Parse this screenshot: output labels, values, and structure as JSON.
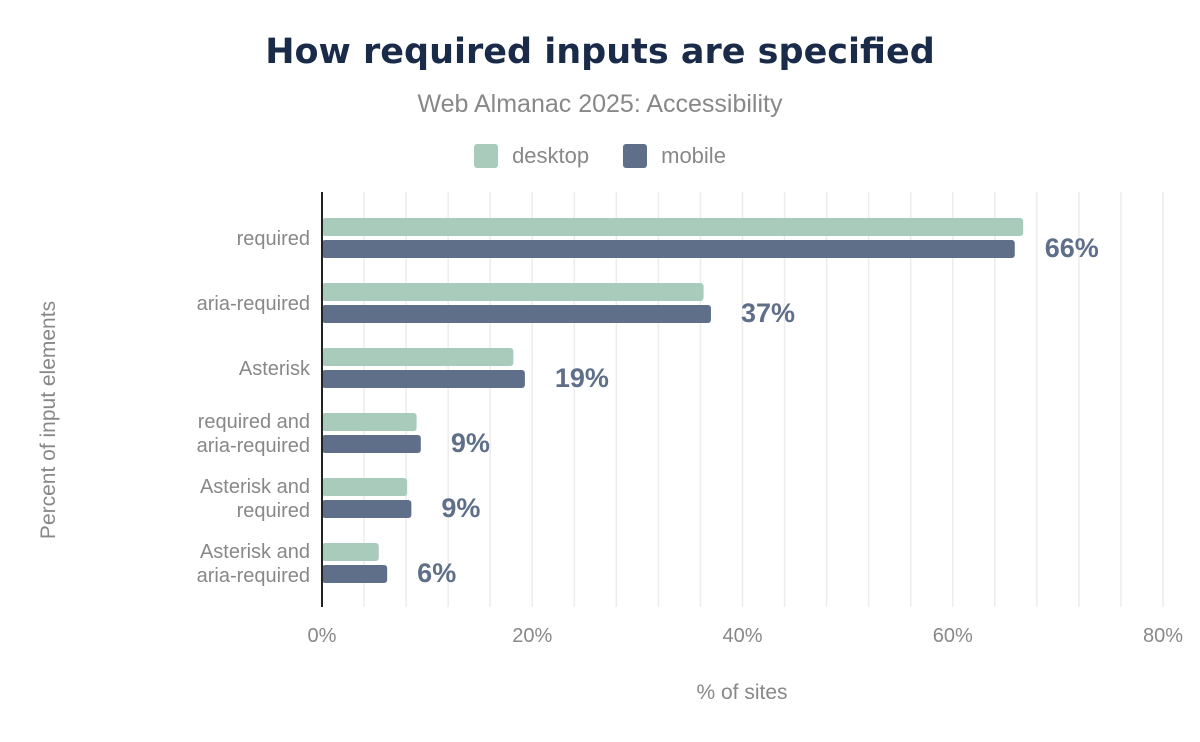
{
  "chart_data": {
    "type": "bar",
    "orientation": "horizontal",
    "title": "How required inputs are specified",
    "subtitle": "Web Almanac 2025: Accessibility",
    "xlabel": "% of sites",
    "ylabel": "Percent of input elements",
    "xlim": [
      0,
      80
    ],
    "xticks": [
      "0%",
      "20%",
      "40%",
      "60%",
      "80%"
    ],
    "xtick_values": [
      0,
      20,
      40,
      60,
      80
    ],
    "grid": true,
    "legend_placement": "top",
    "categories": [
      [
        "required"
      ],
      [
        "aria-required"
      ],
      [
        "Asterisk"
      ],
      [
        "required and",
        "aria-required"
      ],
      [
        "Asterisk and",
        "required"
      ],
      [
        "Asterisk and",
        "aria-required"
      ]
    ],
    "series": [
      {
        "name": "desktop",
        "color": "#a8cbbb",
        "values": [
          66.7,
          36.3,
          18.2,
          9.0,
          8.1,
          5.4
        ]
      },
      {
        "name": "mobile",
        "color": "#5f6f8a",
        "values": [
          65.9,
          37.0,
          19.3,
          9.4,
          8.5,
          6.2
        ]
      }
    ],
    "data_labels": [
      "66%",
      "37%",
      "19%",
      "9%",
      "9%",
      "6%"
    ],
    "data_label_color": "#5f6f8a"
  }
}
